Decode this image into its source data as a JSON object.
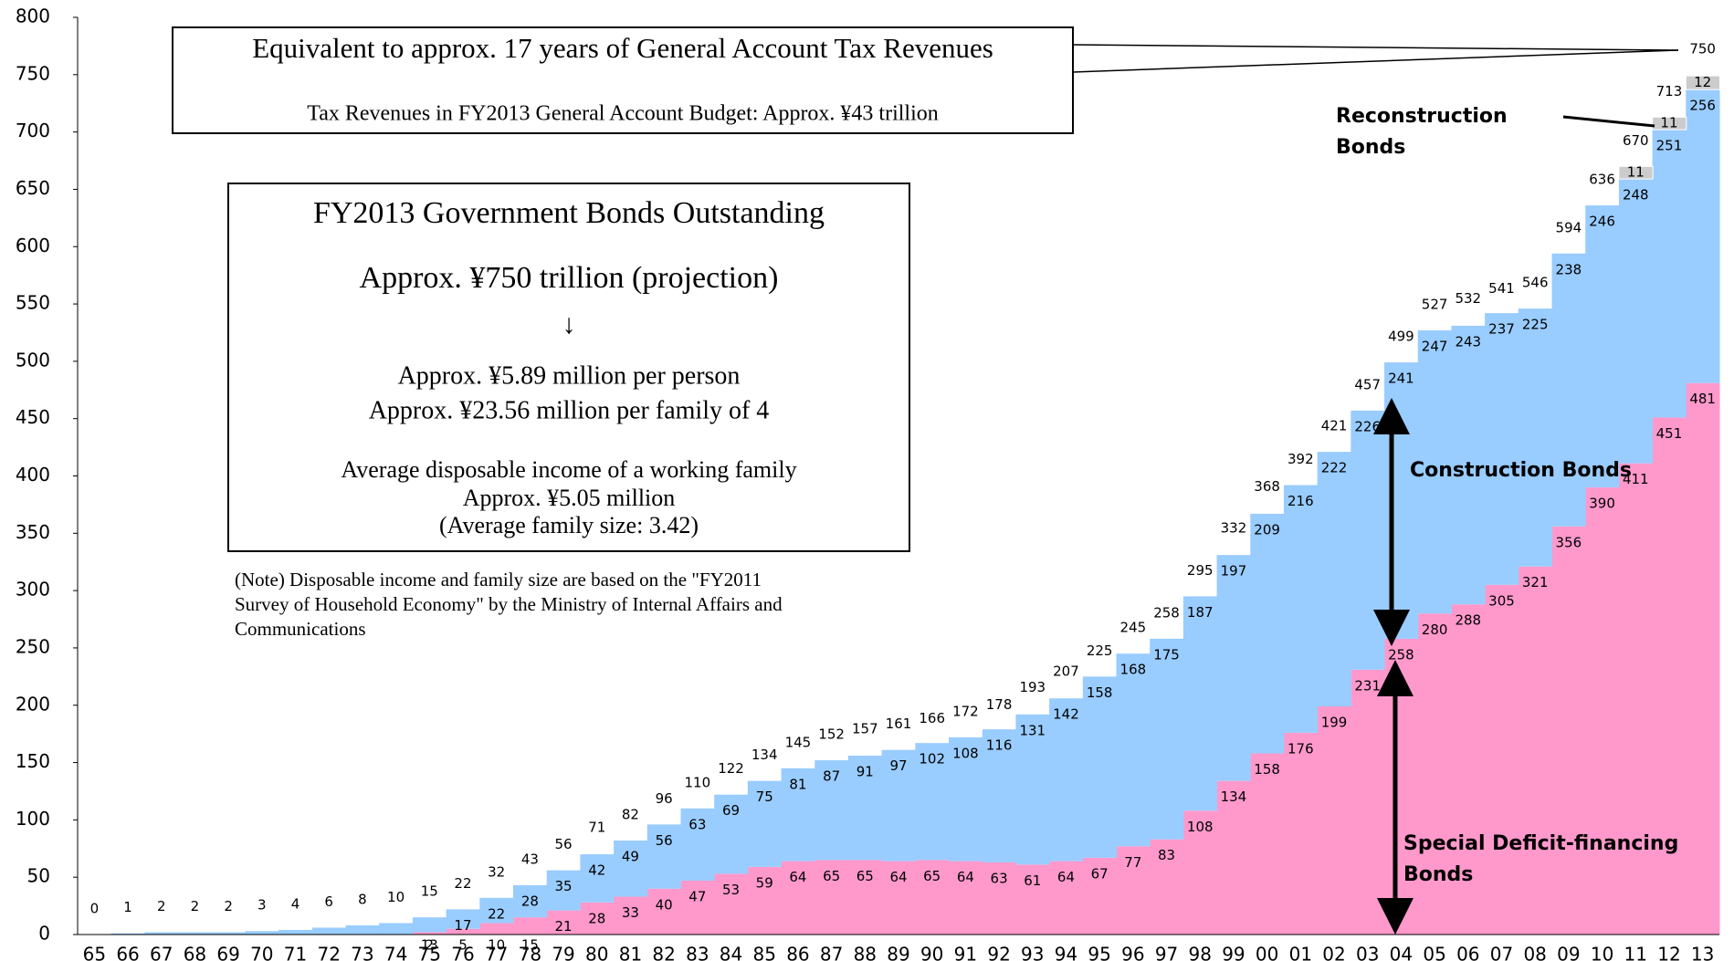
{
  "chart_data": {
    "type": "bar",
    "stacked": true,
    "categories": [
      "65",
      "66",
      "67",
      "68",
      "69",
      "70",
      "71",
      "72",
      "73",
      "74",
      "75",
      "76",
      "77",
      "78",
      "79",
      "80",
      "81",
      "82",
      "83",
      "84",
      "85",
      "86",
      "87",
      "88",
      "89",
      "90",
      "91",
      "92",
      "93",
      "94",
      "95",
      "96",
      "97",
      "98",
      "99",
      "00",
      "01",
      "02",
      "03",
      "04",
      "05",
      "06",
      "07",
      "08",
      "09",
      "10",
      "11",
      "12",
      "13"
    ],
    "series": [
      {
        "name": "Special Deficit-financing Bonds",
        "color": "#ff99cc",
        "values": [
          0,
          0,
          0,
          0,
          0,
          0,
          0,
          0,
          0,
          0,
          2,
          5,
          10,
          15,
          21,
          28,
          33,
          40,
          47,
          53,
          59,
          64,
          65,
          65,
          64,
          65,
          64,
          63,
          61,
          64,
          67,
          77,
          83,
          108,
          134,
          158,
          176,
          199,
          231,
          258,
          280,
          288,
          305,
          321,
          356,
          390,
          411,
          451,
          481
        ],
        "value_labels": [
          null,
          null,
          null,
          null,
          null,
          null,
          null,
          null,
          null,
          null,
          "2",
          "5",
          "10",
          "15",
          "21",
          "28",
          "33",
          "40",
          "47",
          "53",
          "59",
          "64",
          "65",
          "65",
          "64",
          "65",
          "64",
          "63",
          "61",
          "64",
          "67",
          "77",
          "83",
          "108",
          "134",
          "158",
          "176",
          "199",
          "231",
          "258",
          "280",
          "288",
          "305",
          "321",
          "356",
          "390",
          "411",
          "451",
          "481"
        ]
      },
      {
        "name": "Construction Bonds",
        "color": "#99ccff",
        "values": [
          0,
          1,
          2,
          2,
          2,
          3,
          4,
          6,
          8,
          10,
          13,
          17,
          22,
          28,
          35,
          42,
          49,
          56,
          63,
          69,
          75,
          81,
          87,
          91,
          97,
          102,
          108,
          116,
          131,
          142,
          158,
          168,
          175,
          187,
          197,
          209,
          216,
          222,
          226,
          241,
          247,
          243,
          237,
          225,
          238,
          246,
          248,
          251,
          256
        ],
        "value_labels": [
          null,
          null,
          null,
          null,
          null,
          null,
          null,
          null,
          null,
          null,
          "13",
          "17",
          "22",
          "28",
          "35",
          "42",
          "49",
          "56",
          "63",
          "69",
          "75",
          "81",
          "87",
          "91",
          "97",
          "102",
          "108",
          "116",
          "131",
          "142",
          "158",
          "168",
          "175",
          "187",
          "197",
          "209",
          "216",
          "222",
          "226",
          "241",
          "247",
          "243",
          "237",
          "225",
          "238",
          "246",
          "248",
          "251",
          "256"
        ]
      },
      {
        "name": "Reconstruction Bonds",
        "color": "#cccccc",
        "values": [
          null,
          null,
          null,
          null,
          null,
          null,
          null,
          null,
          null,
          null,
          null,
          null,
          null,
          null,
          null,
          null,
          null,
          null,
          null,
          null,
          null,
          null,
          null,
          null,
          null,
          null,
          null,
          null,
          null,
          null,
          null,
          null,
          null,
          null,
          null,
          null,
          null,
          null,
          null,
          null,
          null,
          null,
          null,
          null,
          null,
          null,
          11,
          11,
          12
        ]
      }
    ],
    "totals": [
      0,
      1,
      2,
      2,
      2,
      3,
      4,
      6,
      8,
      10,
      15,
      22,
      32,
      43,
      56,
      71,
      82,
      96,
      110,
      122,
      134,
      145,
      152,
      157,
      161,
      166,
      172,
      178,
      193,
      207,
      225,
      245,
      258,
      295,
      332,
      368,
      392,
      421,
      457,
      499,
      527,
      532,
      541,
      546,
      594,
      636,
      670,
      713,
      750
    ],
    "ylim": [
      0,
      800
    ],
    "yticks": [
      0,
      50,
      100,
      150,
      200,
      250,
      300,
      350,
      400,
      450,
      500,
      550,
      600,
      650,
      700,
      750,
      800
    ],
    "annotations": {
      "box1": [
        "Equivalent to approx. 17 years of General Account Tax Revenues",
        "Tax Revenues in FY2013 General Account Budget: Approx. ¥43 trillion"
      ],
      "box2": [
        "FY2013 Government Bonds Outstanding",
        "Approx. ¥750 trillion  (projection)",
        "↓",
        "Approx. ¥5.89 million per person",
        "Approx. ¥23.56 million per family of 4",
        "Average disposable income of a working family",
        "Approx. ¥5.05 million",
        "(Average family size: 3.42)"
      ],
      "note": [
        "(Note) Disposable income and family size are based on the \"FY2011",
        "Survey of Household Economy\" by the Ministry of Internal Affairs and",
        "Communications"
      ]
    }
  }
}
